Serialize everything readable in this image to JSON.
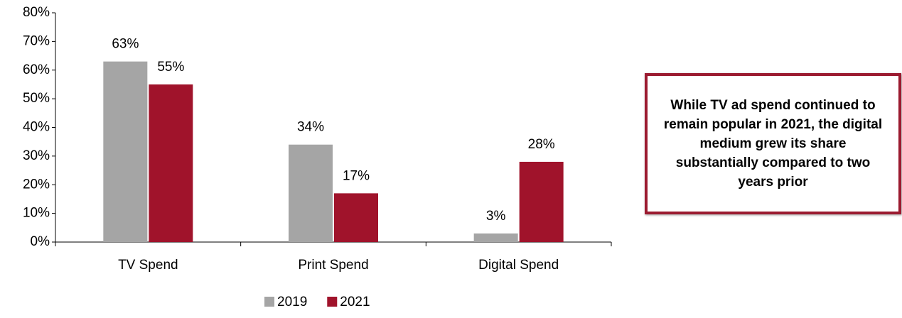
{
  "chart_data": {
    "type": "bar",
    "categories": [
      "TV Spend",
      "Print Spend",
      "Digital Spend"
    ],
    "series": [
      {
        "name": "2019",
        "color": "#a5a5a5",
        "values": [
          63,
          34,
          3
        ],
        "value_labels": [
          "63%",
          "34%",
          "3%"
        ]
      },
      {
        "name": "2021",
        "color": "#a0132b",
        "values": [
          55,
          17,
          28
        ],
        "value_labels": [
          "55%",
          "17%",
          "28%"
        ]
      }
    ],
    "ylim": [
      0,
      80
    ],
    "yticks": [
      {
        "value": 0,
        "label": "0%"
      },
      {
        "value": 10,
        "label": "10%"
      },
      {
        "value": 20,
        "label": "20%"
      },
      {
        "value": 30,
        "label": "30%"
      },
      {
        "value": 40,
        "label": "40%"
      },
      {
        "value": 50,
        "label": "50%"
      },
      {
        "value": 60,
        "label": "60%"
      },
      {
        "value": 70,
        "label": "70%"
      },
      {
        "value": 80,
        "label": "80%"
      }
    ],
    "legend": "bottom",
    "annotation": "While TV ad spend continued to remain popular in 2021, the digital medium grew its share substantially compared to two years prior"
  }
}
